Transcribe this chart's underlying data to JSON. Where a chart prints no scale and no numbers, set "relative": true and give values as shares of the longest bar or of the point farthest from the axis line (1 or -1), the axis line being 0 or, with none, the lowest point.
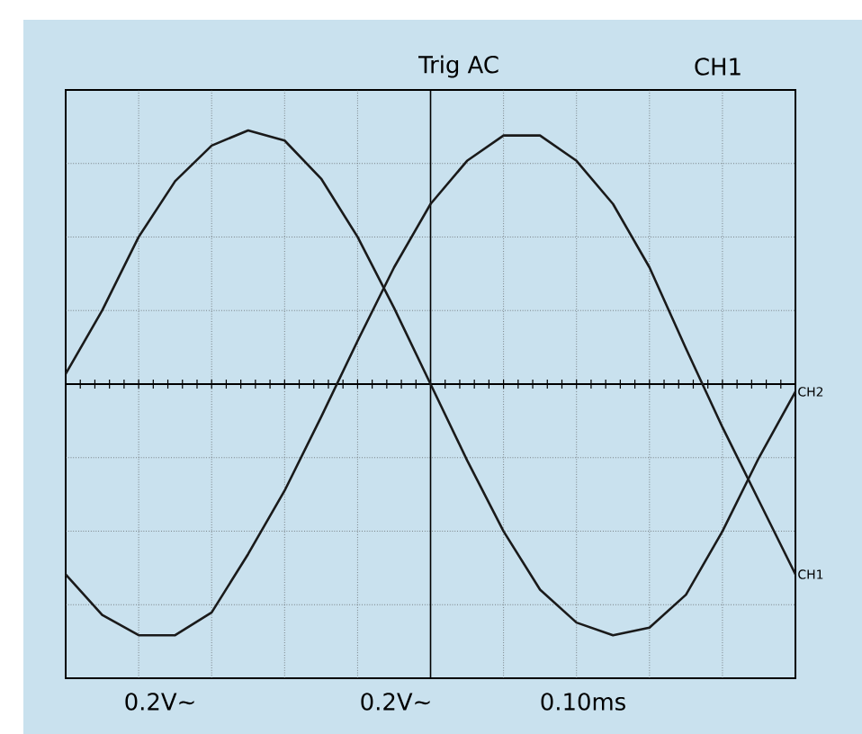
{
  "chart_data": {
    "type": "line",
    "relative": true,
    "grid": true,
    "categories": [
      null,
      null,
      null,
      null,
      null,
      null,
      null,
      null,
      null,
      null,
      null,
      null,
      null,
      null,
      null,
      null,
      null,
      null,
      null,
      null,
      null
    ],
    "series": [
      {
        "name": "CH2",
        "color": "#1a1a1a",
        "values": [
          0.04,
          0.29,
          0.58,
          0.8,
          0.94,
          1,
          0.96,
          0.81,
          0.58,
          0.3,
          0,
          -0.3,
          -0.58,
          -0.81,
          -0.94,
          -0.99,
          -0.96,
          -0.83,
          -0.58,
          -0.29,
          -0.03
        ]
      },
      {
        "name": "CH1",
        "color": "#1a1a1a",
        "values": [
          -0.75,
          -0.91,
          -0.99,
          -0.99,
          -0.9,
          -0.67,
          -0.42,
          -0.13,
          0.17,
          0.46,
          0.71,
          0.88,
          0.98,
          0.98,
          0.88,
          0.71,
          0.46,
          0.14,
          -0.17,
          -0.46,
          -0.75
        ]
      }
    ],
    "annotations": [
      "Trig AC",
      "CH1",
      "0.2V~",
      "0.2V~",
      "0.10ms"
    ]
  }
}
